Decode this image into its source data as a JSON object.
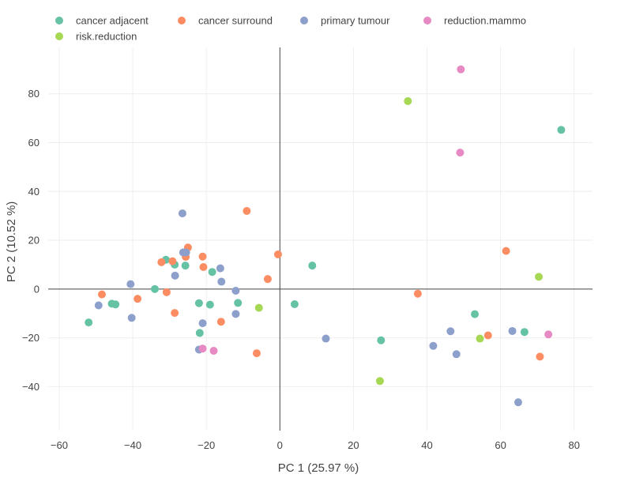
{
  "chart_data": {
    "type": "scatter",
    "xlabel": "PC 1 (25.97 %)",
    "ylabel": "PC 2 (10.52 %)",
    "xlim": [
      -63,
      85
    ],
    "ylim": [
      -58,
      99
    ],
    "xticks": [
      -60,
      -40,
      -20,
      0,
      20,
      40,
      60,
      80
    ],
    "yticks": [
      -40,
      -20,
      0,
      20,
      40,
      60,
      80
    ],
    "grid": true,
    "zero_lines": true,
    "legend_position": "top",
    "series": [
      {
        "name": "cancer adjacent",
        "color": "#66c2a5",
        "points": [
          [
            -52,
            -13.7
          ],
          [
            -45.7,
            -6
          ],
          [
            -44.7,
            -6.3
          ],
          [
            -34,
            0
          ],
          [
            -31,
            12
          ],
          [
            -28.6,
            10
          ],
          [
            -25.7,
            9.6
          ],
          [
            -18.4,
            7
          ],
          [
            -22,
            -5.8
          ],
          [
            -19,
            -6.4
          ],
          [
            -11.4,
            -5.7
          ],
          [
            -21.8,
            -18
          ],
          [
            8.8,
            9.6
          ],
          [
            4,
            -6.2
          ],
          [
            27.5,
            -21
          ],
          [
            53,
            -10.3
          ],
          [
            66.5,
            -17.6
          ],
          [
            76.5,
            65.2
          ]
        ]
      },
      {
        "name": "cancer surround",
        "color": "#fc8d62",
        "points": [
          [
            -48.4,
            -2.2
          ],
          [
            -38.7,
            -4
          ],
          [
            -32.2,
            11
          ],
          [
            -29.2,
            11.4
          ],
          [
            -30.8,
            -1.3
          ],
          [
            -28.6,
            -9.8
          ],
          [
            -25.6,
            13.2
          ],
          [
            -25,
            17
          ],
          [
            -21,
            13.3
          ],
          [
            -20.8,
            9
          ],
          [
            -9,
            32
          ],
          [
            -16,
            -13.4
          ],
          [
            -3.3,
            4.1
          ],
          [
            -0.5,
            14.2
          ],
          [
            -6.3,
            -26.3
          ],
          [
            37.5,
            -1.9
          ],
          [
            56.6,
            -19
          ],
          [
            61.5,
            15.6
          ],
          [
            70.7,
            -27.7
          ]
        ]
      },
      {
        "name": "primary tumour",
        "color": "#8da0cb",
        "points": [
          [
            -49.3,
            -6.7
          ],
          [
            -40.6,
            2
          ],
          [
            -40.3,
            -11.8
          ],
          [
            -26.5,
            31
          ],
          [
            -26.3,
            15
          ],
          [
            -25.5,
            15
          ],
          [
            -28.5,
            5.5
          ],
          [
            -16.2,
            8.5
          ],
          [
            -15.9,
            3
          ],
          [
            -12,
            -0.7
          ],
          [
            -12,
            -10.2
          ],
          [
            -21,
            -14
          ],
          [
            -22,
            -24.8
          ],
          [
            12.5,
            -20.3
          ],
          [
            41.7,
            -23.3
          ],
          [
            46.4,
            -17.3
          ],
          [
            48,
            -26.7
          ],
          [
            63.2,
            -17.2
          ],
          [
            64.8,
            -46.4
          ]
        ]
      },
      {
        "name": "reduction.mammo",
        "color": "#e78ac3",
        "points": [
          [
            49.2,
            90
          ],
          [
            49,
            55.9
          ],
          [
            -21,
            -24.4
          ],
          [
            -18,
            -25.3
          ],
          [
            73,
            -18.6
          ]
        ]
      },
      {
        "name": "risk.reduction",
        "color": "#a6d854",
        "points": [
          [
            34.8,
            77
          ],
          [
            -5.7,
            -7.7
          ],
          [
            27.2,
            -37.7
          ],
          [
            54.4,
            -20.3
          ],
          [
            70.4,
            5
          ]
        ]
      }
    ]
  }
}
